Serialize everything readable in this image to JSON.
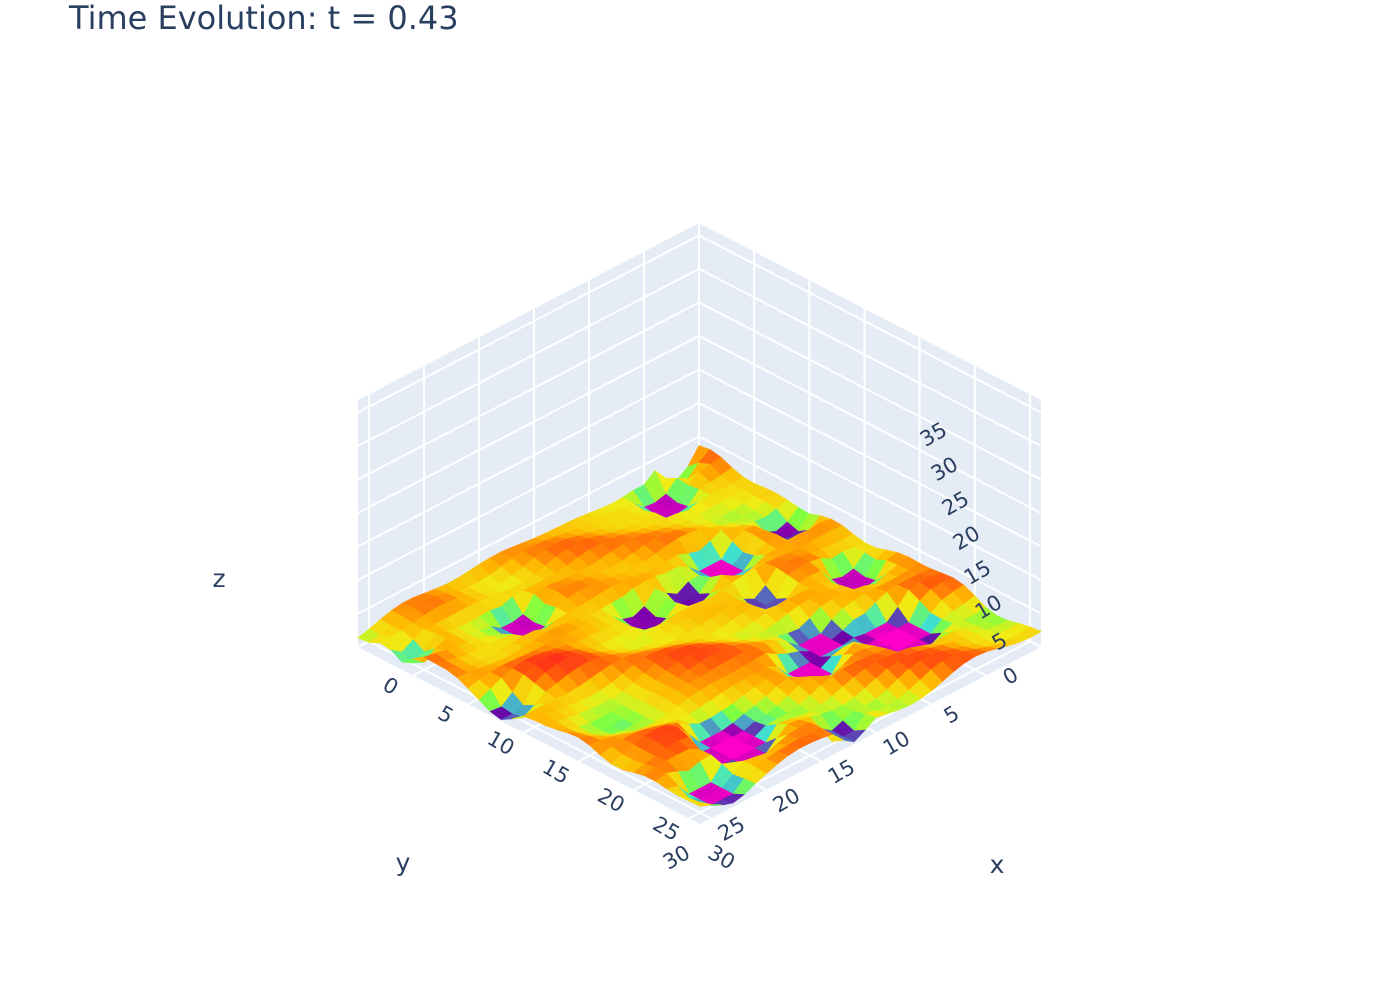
{
  "chart_data": {
    "type": "surface",
    "title": "Time Evolution: t = 0.43",
    "x_axis": {
      "title": "x",
      "range": [
        0,
        31
      ],
      "ticks": [
        "0",
        "5",
        "10",
        "15",
        "20",
        "25",
        "30"
      ]
    },
    "y_axis": {
      "title": "y",
      "range": [
        0,
        31
      ],
      "ticks": [
        "5",
        "10",
        "15",
        "20",
        "25",
        "30"
      ]
    },
    "z_axis": {
      "title": "z",
      "range": [
        0,
        37
      ],
      "ticks": [
        "0",
        "5",
        "10",
        "15",
        "20",
        "25",
        "30",
        "35"
      ]
    },
    "grid_size": [
      32,
      32
    ],
    "colorscale": "plotly3_r",
    "surface_z_range_approx": [
      0,
      5
    ],
    "scene_background": "#e5ecf6",
    "gridline_color": "#ffffff",
    "low_value_regions": [
      {
        "x": 24,
        "y": 6,
        "r": 2.0
      },
      {
        "x": 17,
        "y": 3,
        "r": 1.0
      },
      {
        "x": 21,
        "y": 10,
        "r": 1.2
      },
      {
        "x": 10,
        "y": 8,
        "r": 1.3
      },
      {
        "x": 2,
        "y": 5,
        "r": 1.0
      },
      {
        "x": 10,
        "y": 2,
        "r": 0.8
      },
      {
        "x": 6,
        "y": 22,
        "r": 1.0
      },
      {
        "x": 11,
        "y": 12,
        "r": 0.8
      },
      {
        "x": 15,
        "y": 9,
        "r": 0.7
      },
      {
        "x": 11,
        "y": 16,
        "r": 0.8
      },
      {
        "x": 26,
        "y": 23,
        "r": 2.0
      },
      {
        "x": 23,
        "y": 13,
        "r": 1.3
      },
      {
        "x": 30,
        "y": 17,
        "r": 0.7
      },
      {
        "x": 29,
        "y": 28,
        "r": 1.2
      },
      {
        "x": 13,
        "y": 30,
        "r": 0.5
      },
      {
        "x": 4,
        "y": 30,
        "r": 0.5
      },
      {
        "x": 0,
        "y": 2,
        "r": 0.5
      }
    ]
  }
}
